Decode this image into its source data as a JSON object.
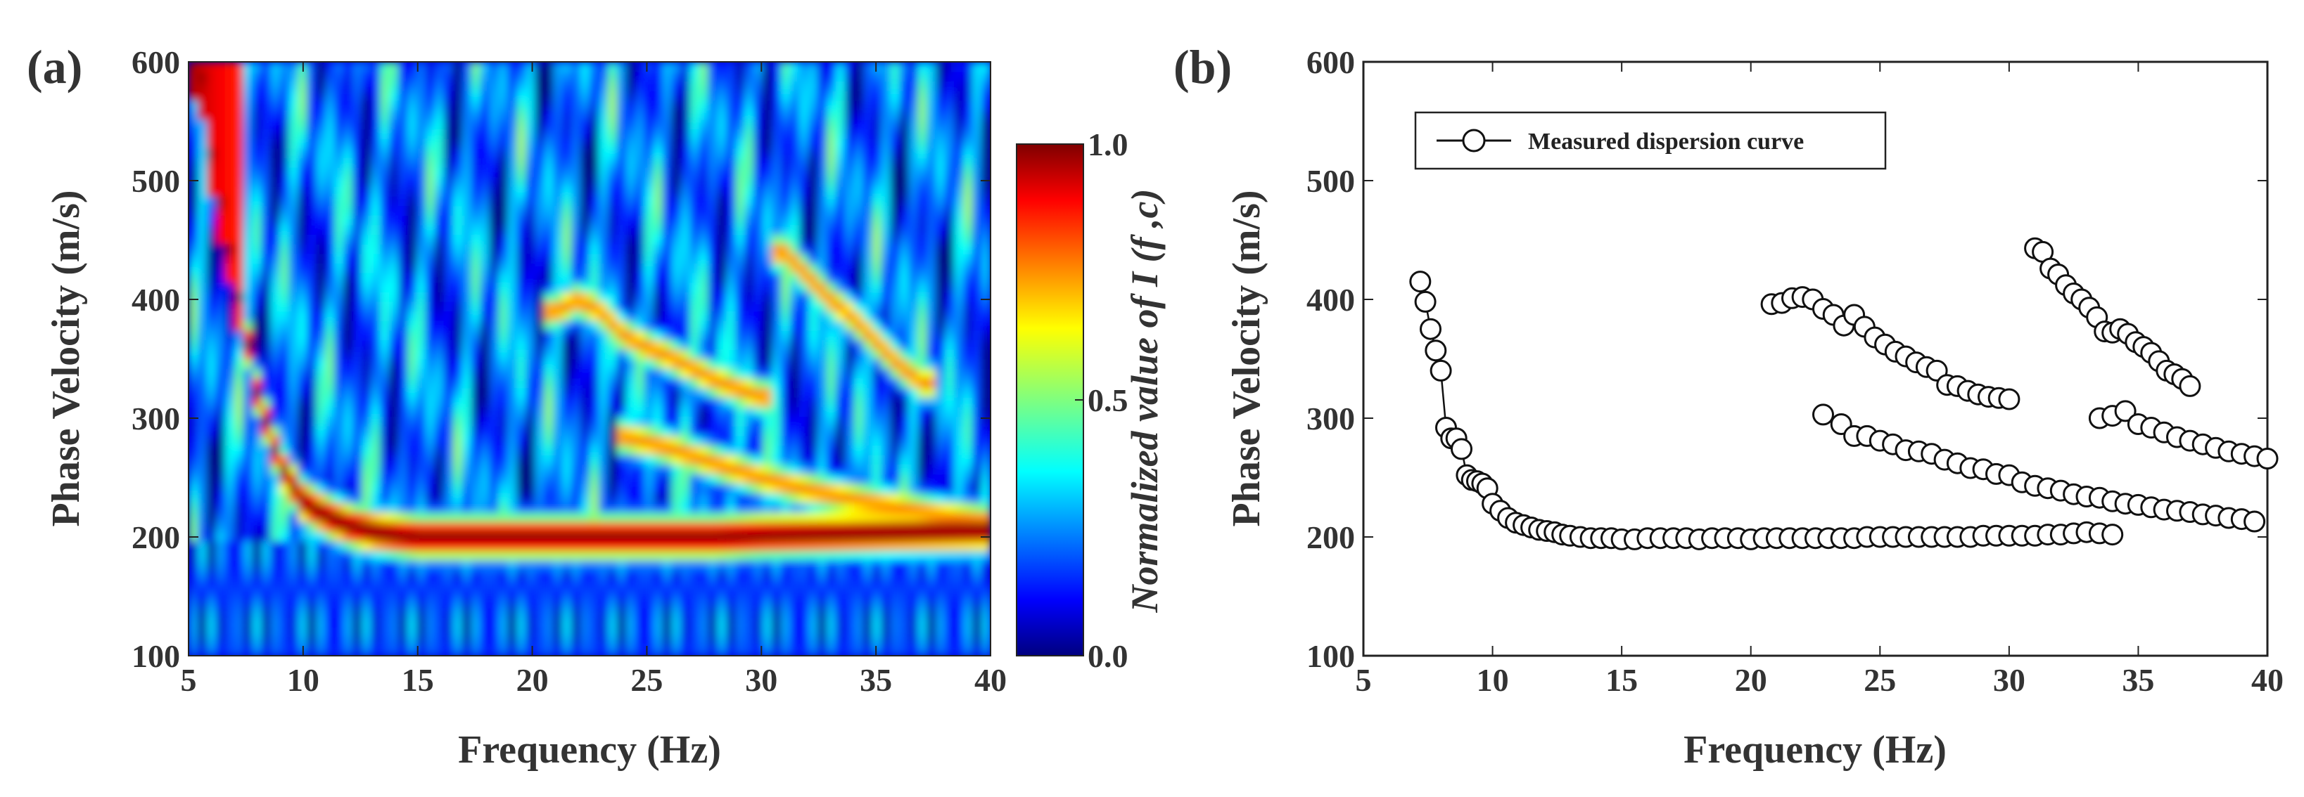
{
  "colors": {
    "axis": "#222222",
    "text": "#333333",
    "marker_fill": "#ffffff",
    "marker_edge": "#111111",
    "jet_low": "#00007f",
    "jet_high": "#7f0000"
  },
  "chart_data": [
    {
      "panel_label": "(a)",
      "type": "heatmap",
      "title": "",
      "xlabel": "Frequency (Hz)",
      "ylabel": "Phase Velocity (m/s)",
      "xlim": [
        5,
        40
      ],
      "ylim": [
        100,
        600
      ],
      "x_ticks": [
        "5",
        "10",
        "15",
        "20",
        "25",
        "30",
        "35",
        "40"
      ],
      "y_ticks": [
        "100",
        "200",
        "300",
        "400",
        "500",
        "600"
      ],
      "colormap": "jet",
      "colorbar": {
        "label_prefix": "Normalized  value  of ",
        "label_math": "I (f ,c)",
        "range": [
          0.0,
          1.0
        ],
        "ticks": [
          "0.0",
          "0.5",
          "1.0"
        ]
      },
      "ridges": [
        {
          "mode": "fundamental",
          "f": [
            5.5,
            6,
            7,
            8,
            9,
            10,
            11,
            12,
            13,
            15,
            17,
            20,
            22,
            25,
            28,
            30,
            35,
            40
          ],
          "c": [
            600,
            520,
            420,
            320,
            260,
            230,
            218,
            210,
            205,
            200,
            200,
            200,
            200,
            200,
            200,
            202,
            204,
            206
          ]
        },
        {
          "mode": "higher-1",
          "f": [
            24,
            26,
            28,
            30,
            32,
            34,
            36,
            38,
            40
          ],
          "c": [
            285,
            275,
            262,
            250,
            240,
            232,
            225,
            218,
            213
          ]
        },
        {
          "mode": "higher-2",
          "f": [
            21,
            22,
            23,
            24,
            25,
            26,
            27,
            28,
            29,
            30
          ],
          "c": [
            390,
            400,
            390,
            370,
            360,
            352,
            342,
            332,
            325,
            318
          ]
        },
        {
          "mode": "higher-3",
          "f": [
            31,
            32,
            33,
            34,
            35,
            36,
            37
          ],
          "c": [
            440,
            420,
            400,
            385,
            365,
            345,
            330
          ]
        }
      ]
    },
    {
      "panel_label": "(b)",
      "type": "scatter",
      "title": "",
      "xlabel": "Frequency (Hz)",
      "ylabel": "Phase Velocity (m/s)",
      "xlim": [
        5,
        40
      ],
      "ylim": [
        100,
        600
      ],
      "x_ticks": [
        "5",
        "10",
        "15",
        "20",
        "25",
        "30",
        "35",
        "40"
      ],
      "y_ticks": [
        "100",
        "200",
        "300",
        "400",
        "500",
        "600"
      ],
      "legend": {
        "location": "top-left",
        "entries": [
          "Measured dispersion curve"
        ]
      },
      "series": [
        {
          "name": "Measured dispersion curve",
          "segments": [
            {
              "x": [
                7.2,
                7.4,
                7.6,
                7.8,
                8.0,
                8.2,
                8.4,
                8.6,
                8.8,
                9.0,
                9.2,
                9.4,
                9.6,
                9.8,
                10.0,
                10.3,
                10.6,
                10.9,
                11.2,
                11.5,
                11.8,
                12.1,
                12.4,
                12.7,
                13.0,
                13.4,
                13.8,
                14.2,
                14.6,
                15.0,
                15.5,
                16.0,
                16.5,
                17.0,
                17.5,
                18.0,
                18.5,
                19.0,
                19.5,
                20.0,
                20.5,
                21.0,
                21.5,
                22.0,
                22.5,
                23.0,
                23.5,
                24.0,
                24.5,
                25.0,
                25.5,
                26.0,
                26.5,
                27.0,
                27.5,
                28.0,
                28.5,
                29.0,
                29.5,
                30.0,
                30.5,
                31.0,
                31.5,
                32.0,
                32.5,
                33.0,
                33.5,
                34.0
              ],
              "y": [
                415,
                398,
                375,
                357,
                340,
                292,
                283,
                283,
                274,
                252,
                248,
                247,
                245,
                241,
                228,
                222,
                216,
                212,
                210,
                208,
                206,
                205,
                204,
                202,
                201,
                200,
                199,
                199,
                199,
                198,
                198,
                199,
                199,
                199,
                199,
                198,
                199,
                199,
                199,
                198,
                199,
                199,
                199,
                199,
                199,
                199,
                199,
                199,
                200,
                200,
                200,
                200,
                200,
                200,
                200,
                200,
                200,
                201,
                201,
                201,
                201,
                201,
                202,
                202,
                203,
                204,
                203,
                202
              ]
            },
            {
              "x": [
                22.8,
                23.5,
                24.0,
                24.5,
                25.0,
                25.5,
                26.0,
                26.5,
                27.0,
                27.5,
                28.0,
                28.5,
                29.0,
                29.5,
                30.0,
                30.5,
                31.0,
                31.5,
                32.0,
                32.5,
                33.0,
                33.5,
                34.0,
                34.5,
                35.0,
                35.5,
                36.0,
                36.5,
                37.0,
                37.5,
                38.0,
                38.5,
                39.0,
                39.5
              ],
              "y": [
                303,
                295,
                285,
                285,
                281,
                278,
                273,
                272,
                270,
                265,
                262,
                258,
                257,
                253,
                252,
                246,
                243,
                241,
                239,
                236,
                234,
                233,
                230,
                228,
                227,
                225,
                223,
                222,
                221,
                219,
                218,
                216,
                215,
                213
              ]
            },
            {
              "x": [
                20.8,
                21.2,
                21.6,
                22.0,
                22.4,
                22.8,
                23.2,
                23.6,
                24.0,
                24.4,
                24.8,
                25.2,
                25.6,
                26.0,
                26.4,
                26.8,
                27.2,
                27.6,
                28.0,
                28.4,
                28.8,
                29.2,
                29.6,
                30.0
              ],
              "y": [
                396,
                397,
                401,
                402,
                400,
                392,
                387,
                378,
                387,
                377,
                368,
                362,
                356,
                352,
                347,
                343,
                340,
                328,
                327,
                323,
                320,
                318,
                317,
                316
              ]
            },
            {
              "x": [
                31.0,
                31.3,
                31.6,
                31.9,
                32.2,
                32.5,
                32.8,
                33.1,
                33.4,
                33.7,
                34.0,
                34.3,
                34.6,
                34.9,
                35.2,
                35.5,
                35.8,
                36.1,
                36.4,
                36.7,
                37.0
              ],
              "y": [
                443,
                440,
                426,
                421,
                412,
                405,
                400,
                393,
                385,
                373,
                372,
                375,
                371,
                364,
                360,
                355,
                348,
                340,
                337,
                333,
                327
              ]
            },
            {
              "x": [
                33.5,
                34.0,
                34.5,
                35.0,
                35.5,
                36.0,
                36.5,
                37.0,
                37.5,
                38.0,
                38.5,
                39.0,
                39.5,
                40.0
              ],
              "y": [
                300,
                302,
                306,
                295,
                292,
                288,
                284,
                281,
                278,
                275,
                272,
                270,
                268,
                266
              ]
            }
          ]
        }
      ]
    }
  ]
}
